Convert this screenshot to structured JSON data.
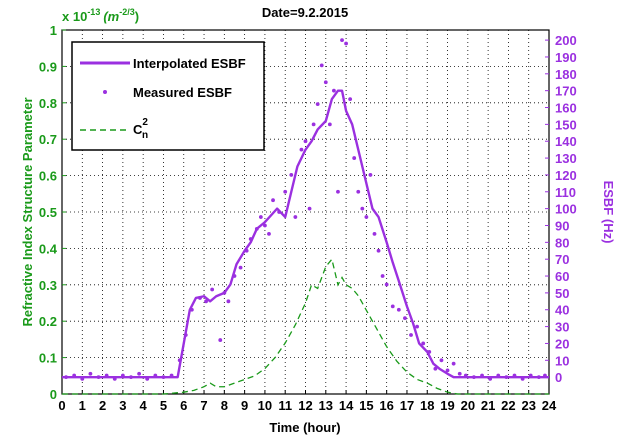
{
  "chart_data": {
    "type": "line",
    "title": "Date=9.2.2015",
    "xlabel": "Time (hour)",
    "ylabel_left": "Refractive Index Structure Parameter",
    "ylabel_right": "ESBF (Hz)",
    "left_scale_label": "x 10",
    "left_scale_exponent": "-13",
    "left_scale_units": "(m",
    "left_scale_units_exponent": "-2/3",
    "left_scale_units_close": ")",
    "xlim": [
      0,
      24
    ],
    "ylim_left": [
      0,
      1
    ],
    "ylim_right": [
      -10,
      206
    ],
    "x_ticks": [
      0,
      1,
      2,
      3,
      4,
      5,
      6,
      7,
      8,
      9,
      10,
      11,
      12,
      13,
      14,
      15,
      16,
      17,
      18,
      19,
      20,
      21,
      22,
      23,
      24
    ],
    "y_ticks_left": [
      0,
      0.1,
      0.2,
      0.3,
      0.4,
      0.5,
      0.6,
      0.7,
      0.8,
      0.9,
      1
    ],
    "y_ticks_right": [
      0,
      10,
      20,
      30,
      40,
      50,
      60,
      70,
      80,
      90,
      100,
      110,
      120,
      130,
      140,
      150,
      160,
      170,
      180,
      190,
      200
    ],
    "grid": true,
    "legend_position": "top-left",
    "legend": [
      {
        "label": "Interpolated ESBF",
        "style": "solid"
      },
      {
        "label": "Measured ESBF",
        "style": "dots"
      },
      {
        "label": "C",
        "sup": "2",
        "sub": "n",
        "style": "dashed"
      }
    ],
    "colors": {
      "esbf": "#9b30e0",
      "cn2": "#1a9a1a",
      "left_axis": "#1a9a1a",
      "right_axis": "#9b30e0"
    },
    "series": [
      {
        "name": "Interpolated ESBF",
        "axis": "right",
        "x": [
          0,
          0.5,
          1,
          1.5,
          2,
          2.5,
          3,
          3.5,
          4,
          4.5,
          5,
          5.5,
          5.7,
          6,
          6.3,
          6.6,
          7,
          7.3,
          7.6,
          8,
          8.3,
          8.6,
          9,
          9.3,
          9.6,
          10,
          10.3,
          10.6,
          11,
          11.3,
          11.6,
          12,
          12.3,
          12.6,
          13,
          13.3,
          13.6,
          13.8,
          14,
          14.3,
          14.6,
          15,
          15.3,
          15.6,
          16,
          16.3,
          16.6,
          17,
          17.3,
          17.6,
          18,
          18.3,
          18.6,
          19,
          19.3,
          19.6,
          20,
          20.5,
          21,
          21.5,
          22,
          22.5,
          23,
          23.5,
          24
        ],
        "y": [
          0,
          0,
          0,
          0,
          0,
          0,
          0,
          0,
          0,
          0,
          0,
          0,
          0,
          20,
          40,
          47,
          48,
          45,
          48,
          50,
          55,
          67,
          75,
          80,
          88,
          92,
          96,
          100,
          95,
          110,
          125,
          135,
          140,
          147,
          152,
          165,
          170,
          170,
          158,
          150,
          135,
          115,
          100,
          95,
          80,
          68,
          57,
          42,
          32,
          20,
          15,
          8,
          5,
          2,
          0,
          0,
          0,
          0,
          0,
          0,
          0,
          0,
          0,
          0,
          0
        ]
      },
      {
        "name": "Measured ESBF",
        "axis": "right",
        "points": [
          [
            0.2,
            0
          ],
          [
            0.6,
            1
          ],
          [
            1.0,
            -1
          ],
          [
            1.4,
            2
          ],
          [
            1.8,
            0
          ],
          [
            2.2,
            1
          ],
          [
            2.6,
            -1
          ],
          [
            3.0,
            1
          ],
          [
            3.4,
            0
          ],
          [
            3.8,
            2
          ],
          [
            4.2,
            -1
          ],
          [
            4.6,
            1
          ],
          [
            5.0,
            0
          ],
          [
            5.4,
            1
          ],
          [
            5.8,
            10
          ],
          [
            6.1,
            25
          ],
          [
            6.4,
            40
          ],
          [
            6.8,
            47
          ],
          [
            7.1,
            45
          ],
          [
            7.4,
            52
          ],
          [
            7.8,
            22
          ],
          [
            8.0,
            50
          ],
          [
            8.2,
            45
          ],
          [
            8.5,
            60
          ],
          [
            8.8,
            65
          ],
          [
            9.1,
            75
          ],
          [
            9.3,
            82
          ],
          [
            9.6,
            88
          ],
          [
            9.8,
            95
          ],
          [
            10.0,
            90
          ],
          [
            10.2,
            85
          ],
          [
            10.4,
            105
          ],
          [
            10.7,
            98
          ],
          [
            11.0,
            110
          ],
          [
            11.3,
            120
          ],
          [
            11.5,
            95
          ],
          [
            11.8,
            135
          ],
          [
            12.0,
            140
          ],
          [
            12.2,
            100
          ],
          [
            12.4,
            150
          ],
          [
            12.6,
            162
          ],
          [
            12.8,
            185
          ],
          [
            13.0,
            175
          ],
          [
            13.2,
            150
          ],
          [
            13.4,
            170
          ],
          [
            13.6,
            110
          ],
          [
            13.8,
            200
          ],
          [
            14.0,
            198
          ],
          [
            14.2,
            165
          ],
          [
            14.4,
            130
          ],
          [
            14.6,
            110
          ],
          [
            14.8,
            100
          ],
          [
            15.0,
            95
          ],
          [
            15.2,
            120
          ],
          [
            15.4,
            85
          ],
          [
            15.6,
            75
          ],
          [
            15.8,
            60
          ],
          [
            16.0,
            55
          ],
          [
            16.3,
            42
          ],
          [
            16.6,
            40
          ],
          [
            16.9,
            35
          ],
          [
            17.2,
            25
          ],
          [
            17.5,
            30
          ],
          [
            17.8,
            20
          ],
          [
            18.1,
            15
          ],
          [
            18.4,
            5
          ],
          [
            18.7,
            10
          ],
          [
            19.0,
            4
          ],
          [
            19.3,
            8
          ],
          [
            19.6,
            2
          ],
          [
            19.9,
            1
          ],
          [
            20.3,
            0
          ],
          [
            20.7,
            1
          ],
          [
            21.1,
            -1
          ],
          [
            21.5,
            1
          ],
          [
            21.9,
            0
          ],
          [
            22.3,
            1
          ],
          [
            22.7,
            -1
          ],
          [
            23.1,
            1
          ],
          [
            23.5,
            0
          ],
          [
            23.8,
            1
          ]
        ]
      },
      {
        "name": "Cn2",
        "axis": "left",
        "x": [
          0,
          1,
          2,
          3,
          4,
          5,
          6,
          6.5,
          7,
          7.3,
          7.6,
          8,
          8.5,
          9,
          9.5,
          10,
          10.5,
          11,
          11.5,
          12,
          12.3,
          12.6,
          13,
          13.3,
          13.6,
          13.8,
          14,
          14.3,
          14.6,
          15,
          15.5,
          16,
          16.5,
          17,
          17.5,
          18,
          18.5,
          19,
          19.5,
          20,
          21,
          22,
          23,
          24
        ],
        "y": [
          0,
          0,
          0,
          0,
          0,
          0,
          0.005,
          0.01,
          0.02,
          0.03,
          0.02,
          0.02,
          0.03,
          0.04,
          0.05,
          0.07,
          0.1,
          0.14,
          0.19,
          0.25,
          0.3,
          0.29,
          0.35,
          0.37,
          0.3,
          0.32,
          0.3,
          0.29,
          0.27,
          0.23,
          0.18,
          0.13,
          0.09,
          0.06,
          0.04,
          0.03,
          0.015,
          0.005,
          0,
          0,
          0,
          0,
          0,
          0
        ]
      }
    ]
  }
}
